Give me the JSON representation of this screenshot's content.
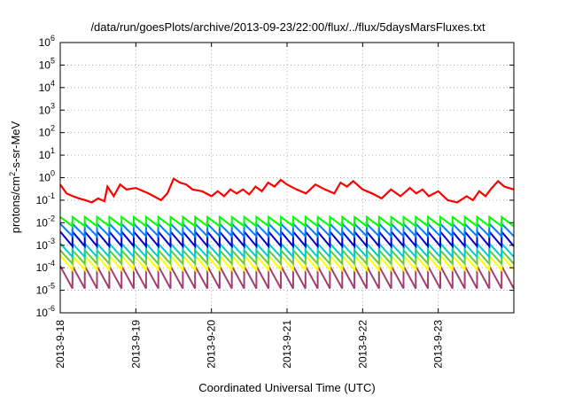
{
  "chart_data": {
    "type": "line",
    "title": "/data/run/goesPlots/archive/2013-09-23/22:00/flux/../flux/5daysMarsFluxes.txt",
    "xlabel": "Coordinated Universal Time (UTC)",
    "ylabel": {
      "prefix": "protons/cm",
      "superscript": "2",
      "suffix": "-s-sr-MeV"
    },
    "yscale": "log",
    "ylim": [
      1e-06,
      1000000.0
    ],
    "xlim": [
      "2013-09-18T00:00",
      "2013-09-24T00:00"
    ],
    "y_ticks": [
      {
        "base": "10",
        "exp": "-6",
        "value": 1e-06
      },
      {
        "base": "10",
        "exp": "-5",
        "value": 1e-05
      },
      {
        "base": "10",
        "exp": "-4",
        "value": 0.0001
      },
      {
        "base": "10",
        "exp": "-3",
        "value": 0.001
      },
      {
        "base": "10",
        "exp": "-2",
        "value": 0.01
      },
      {
        "base": "10",
        "exp": "-1",
        "value": 0.1
      },
      {
        "base": "10",
        "exp": "0",
        "value": 1
      },
      {
        "base": "10",
        "exp": "1",
        "value": 10.0
      },
      {
        "base": "10",
        "exp": "2",
        "value": 100.0
      },
      {
        "base": "10",
        "exp": "3",
        "value": 1000.0
      },
      {
        "base": "10",
        "exp": "4",
        "value": 10000.0
      },
      {
        "base": "10",
        "exp": "5",
        "value": 100000.0
      },
      {
        "base": "10",
        "exp": "6",
        "value": 1000000.0
      }
    ],
    "x_ticks": [
      {
        "label": "2013-9-18",
        "value": "2013-09-18T00:00"
      },
      {
        "label": "2013-9-19",
        "value": "2013-09-19T00:00"
      },
      {
        "label": "2013-9-20",
        "value": "2013-09-20T00:00"
      },
      {
        "label": "2013-9-21",
        "value": "2013-09-21T00:00"
      },
      {
        "label": "2013-9-22",
        "value": "2013-09-22T00:00"
      },
      {
        "label": "2013-9-23",
        "value": "2013-09-23T00:00"
      }
    ],
    "grid": true,
    "legend": "none",
    "series": [
      {
        "color": "#ff0000",
        "x": [
          "2013-09-18T00:00",
          "2013-09-18T02:00",
          "2013-09-18T04:00",
          "2013-09-18T06:00",
          "2013-09-18T08:00",
          "2013-09-18T10:00",
          "2013-09-18T12:00",
          "2013-09-18T14:00",
          "2013-09-18T15:00",
          "2013-09-18T17:00",
          "2013-09-18T19:00",
          "2013-09-18T21:00",
          "2013-09-19T00:00",
          "2013-09-19T04:00",
          "2013-09-19T08:00",
          "2013-09-19T10:00",
          "2013-09-19T12:00",
          "2013-09-19T14:00",
          "2013-09-19T16:00",
          "2013-09-19T18:00",
          "2013-09-19T21:00",
          "2013-09-20T00:00",
          "2013-09-20T02:00",
          "2013-09-20T04:00",
          "2013-09-20T06:00",
          "2013-09-20T08:00",
          "2013-09-20T10:00",
          "2013-09-20T12:00",
          "2013-09-20T14:00",
          "2013-09-20T16:00",
          "2013-09-20T18:00",
          "2013-09-20T20:00",
          "2013-09-20T22:00",
          "2013-09-21T00:00",
          "2013-09-21T03:00",
          "2013-09-21T06:00",
          "2013-09-21T09:00",
          "2013-09-21T12:00",
          "2013-09-21T15:00",
          "2013-09-21T17:00",
          "2013-09-21T19:00",
          "2013-09-21T21:00",
          "2013-09-22T00:00",
          "2013-09-22T03:00",
          "2013-09-22T06:00",
          "2013-09-22T09:00",
          "2013-09-22T12:00",
          "2013-09-22T15:00",
          "2013-09-22T17:00",
          "2013-09-22T19:00",
          "2013-09-22T21:00",
          "2013-09-23T00:00",
          "2013-09-23T03:00",
          "2013-09-23T06:00",
          "2013-09-23T09:00",
          "2013-09-23T11:00",
          "2013-09-23T13:00",
          "2013-09-23T15:00",
          "2013-09-23T17:00",
          "2013-09-23T19:00",
          "2013-09-23T21:00",
          "2013-09-23T23:59"
        ],
        "y": [
          0.5,
          0.2,
          0.15,
          0.12,
          0.1,
          0.08,
          0.12,
          0.09,
          0.4,
          0.15,
          0.5,
          0.3,
          0.35,
          0.2,
          0.1,
          0.2,
          0.9,
          0.6,
          0.5,
          0.3,
          0.25,
          0.15,
          0.25,
          0.15,
          0.3,
          0.2,
          0.3,
          0.18,
          0.4,
          0.25,
          0.6,
          0.4,
          0.8,
          0.5,
          0.3,
          0.2,
          0.5,
          0.3,
          0.2,
          0.6,
          0.4,
          0.7,
          0.3,
          0.2,
          0.12,
          0.3,
          0.15,
          0.35,
          0.2,
          0.3,
          0.15,
          0.25,
          0.1,
          0.08,
          0.15,
          0.1,
          0.25,
          0.15,
          0.35,
          0.7,
          0.4,
          0.3
        ]
      },
      {
        "color": "#00ff00",
        "cycles": 37,
        "peak": 0.018,
        "trough": 0.007
      },
      {
        "color": "#0080ff",
        "cycles": 37,
        "peak": 0.009,
        "trough": 0.0025
      },
      {
        "color": "#0000cc",
        "cycles": 37,
        "peak": 0.004,
        "trough": 0.0009
      },
      {
        "color": "#00cccc",
        "cycles": 37,
        "peak": 0.0012,
        "trough": 0.0003
      },
      {
        "color": "#66cc33",
        "cycles": 37,
        "peak": 0.0006,
        "trough": 0.00015
      },
      {
        "color": "#ffff00",
        "cycles": 37,
        "peak": 0.00035,
        "trough": 8e-05
      },
      {
        "color": "#a04070",
        "cycles": 37,
        "peak": 0.00012,
        "trough": 1.2e-05
      }
    ]
  }
}
